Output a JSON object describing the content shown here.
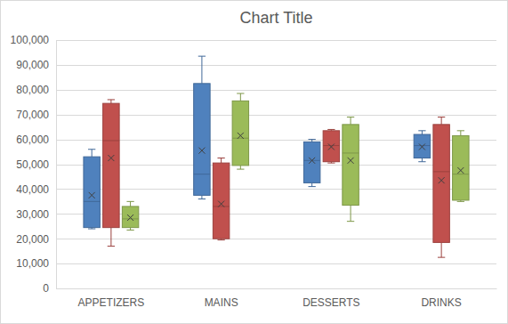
{
  "chart_data": {
    "type": "box",
    "title": "Chart Title",
    "categories": [
      "APPETIZERS",
      "MAINS",
      "DESSERTS",
      "DRINKS"
    ],
    "series": [
      {
        "color": "#4f81bd",
        "min": [
          24000,
          36000,
          41000,
          51000
        ],
        "q1": [
          24500,
          37500,
          42500,
          52500
        ],
        "median": [
          35000,
          46000,
          51500,
          57500
        ],
        "q3": [
          53000,
          82500,
          59000,
          62000
        ],
        "max": [
          56000,
          93500,
          60000,
          63500
        ],
        "mean": [
          37500,
          55500,
          51500,
          57000
        ]
      },
      {
        "color": "#c0504d",
        "min": [
          17000,
          19500,
          50500,
          12500
        ],
        "q1": [
          24500,
          20000,
          51000,
          18500
        ],
        "median": [
          59500,
          33000,
          57500,
          47000
        ],
        "q3": [
          74500,
          50500,
          63500,
          66000
        ],
        "max": [
          76000,
          52500,
          64000,
          69000
        ],
        "mean": [
          52500,
          34000,
          57000,
          43500
        ]
      },
      {
        "color": "#9bbb59",
        "min": [
          23500,
          48000,
          27000,
          35000
        ],
        "q1": [
          24500,
          49500,
          33500,
          35500
        ],
        "median": [
          28000,
          60500,
          54500,
          46000
        ],
        "q3": [
          33000,
          75500,
          66000,
          61500
        ],
        "max": [
          35000,
          78500,
          69000,
          63500
        ],
        "mean": [
          28500,
          61500,
          51500,
          47500
        ]
      }
    ],
    "ylim": [
      0,
      100000
    ],
    "yticks": [
      0,
      {
        "value": 10000,
        "label": "10,000"
      },
      {
        "value": 20000,
        "label": "20,000"
      },
      {
        "value": 30000,
        "label": "30,000"
      },
      {
        "value": 40000,
        "label": "40,000"
      },
      {
        "value": 50000,
        "label": "50,000"
      },
      {
        "value": 60000,
        "label": "60,000"
      },
      {
        "value": 70000,
        "label": "70,000"
      },
      {
        "value": 80000,
        "label": "80,000"
      },
      {
        "value": 90000,
        "label": "90,000"
      },
      {
        "value": 100000,
        "label": "100,000"
      }
    ],
    "grid": true
  }
}
